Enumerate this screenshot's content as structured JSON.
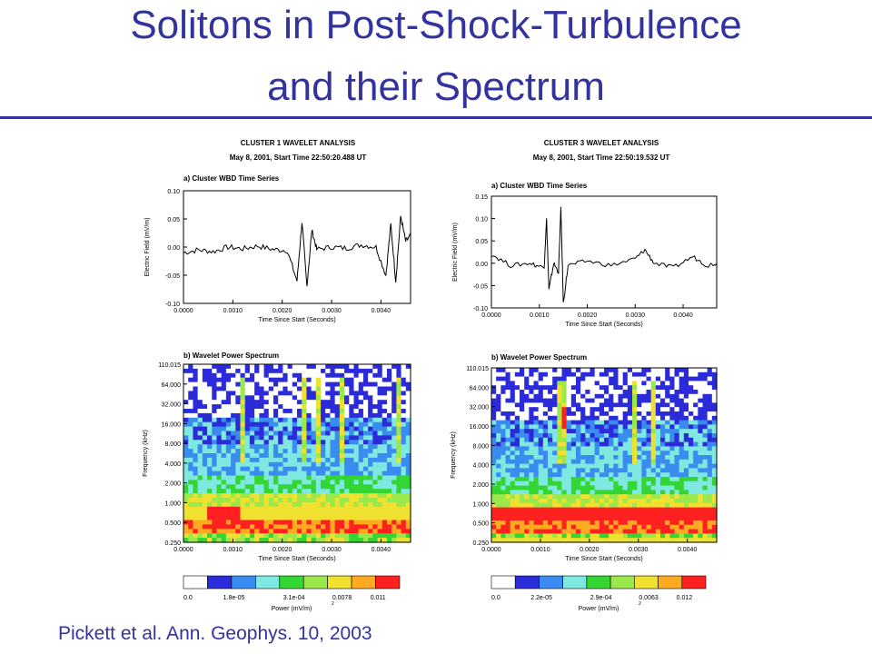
{
  "slide": {
    "title_line1": "Solitons in Post-Shock-Turbulence",
    "title_line2": "and their Spectrum",
    "citation": "Pickett et al. Ann. Geophys. 10, 2003"
  },
  "colors": {
    "title": "#3333a0",
    "spectrum_palette": [
      "#ffffff",
      "#2b2bd9",
      "#3a8cf0",
      "#7fe8e0",
      "#33d633",
      "#9be84a",
      "#f0e030",
      "#ffaa20",
      "#ff2020"
    ]
  },
  "chart_data": [
    {
      "type": "line",
      "panel": "cluster1-timeseries",
      "header_line1": "CLUSTER 1 WAVELET ANALYSIS",
      "header_line2": "May 8, 2001, Start Time 22:50:20.488 UT",
      "title": "a) Cluster WBD Time Series",
      "xlabel": "Time Since Start (Seconds)",
      "ylabel": "Electric Field (mV/m)",
      "xlim": [
        0,
        0.0046
      ],
      "ylim": [
        -0.1,
        0.1
      ],
      "xticks": [
        "0.0000",
        "0.0010",
        "0.0020",
        "0.0030",
        "0.0040"
      ],
      "yticks": [
        "0.10",
        "0.05",
        "0.00",
        "-0.05",
        "-0.10"
      ],
      "x": [
        0.0,
        0.0003,
        0.0006,
        0.0009,
        0.0012,
        0.0015,
        0.0018,
        0.0021,
        0.0023,
        0.0024,
        0.0025,
        0.0026,
        0.0027,
        0.003,
        0.0033,
        0.0036,
        0.0039,
        0.0041,
        0.0042,
        0.0043,
        0.0044,
        0.0045,
        0.0046
      ],
      "y": [
        -0.01,
        -0.005,
        -0.008,
        0.0,
        -0.003,
        0.002,
        -0.004,
        -0.006,
        -0.06,
        0.045,
        -0.07,
        0.03,
        -0.004,
        0.0,
        -0.002,
        0.004,
        0.0,
        -0.05,
        0.04,
        -0.06,
        0.055,
        0.01,
        0.02
      ]
    },
    {
      "type": "line",
      "panel": "cluster3-timeseries",
      "header_line1": "CLUSTER 3 WAVELET ANALYSIS",
      "header_line2": "May 8, 2001, Start Time 22:50:19.532 UT",
      "title": "a) Cluster WBD Time Series",
      "xlabel": "Time Since Start (Seconds)",
      "ylabel": "Electric Field (mV/m)",
      "xlim": [
        0,
        0.0047
      ],
      "ylim": [
        -0.1,
        0.15
      ],
      "xticks": [
        "0.0000",
        "0.0010",
        "0.0020",
        "0.0030",
        "0.0040"
      ],
      "yticks": [
        "0.15",
        "0.10",
        "0.05",
        "0.00",
        "-0.05",
        "-0.10"
      ],
      "x": [
        0.0,
        0.0004,
        0.0008,
        0.0011,
        0.00115,
        0.0012,
        0.0013,
        0.0014,
        0.00145,
        0.0015,
        0.0016,
        0.002,
        0.0025,
        0.003,
        0.0032,
        0.0034,
        0.0038,
        0.0042,
        0.0045,
        0.0047
      ],
      "y": [
        0.02,
        -0.005,
        0.0,
        -0.01,
        0.1,
        -0.06,
        0.0,
        -0.02,
        0.125,
        -0.09,
        -0.005,
        0.005,
        -0.005,
        0.01,
        0.03,
        0.0,
        -0.01,
        0.015,
        -0.005,
        0.0
      ]
    },
    {
      "type": "heatmap",
      "panel": "cluster1-spectrum",
      "title": "b) Wavelet Power Spectrum",
      "xlabel": "Time Since Start (Seconds)",
      "ylabel": "Frequency (kHz)",
      "xticks": [
        "0.0000",
        "0.0010",
        "0.0020",
        "0.0030",
        "0.0040"
      ],
      "yticks": [
        "110.015",
        "64.000",
        "32.000",
        "16.000",
        "8.000",
        "4.000",
        "2.000",
        "1.000",
        "0.500",
        "0.250"
      ],
      "colorbar": {
        "labels": [
          "0.0",
          "1.8e-05",
          "3.1e-04",
          "0.0078",
          "0.011"
        ],
        "xlabel": "Power (mV/m)",
        "exponent": "2"
      }
    },
    {
      "type": "heatmap",
      "panel": "cluster3-spectrum",
      "title": "b) Wavelet Power Spectrum",
      "xlabel": "Time Since Start (Seconds)",
      "ylabel": "Frequency (kHz)",
      "xticks": [
        "0.0000",
        "0.0010",
        "0.0020",
        "0.0030",
        "0.0040"
      ],
      "yticks": [
        "110.015",
        "64.000",
        "32.000",
        "16.000",
        "8.000",
        "4.000",
        "2.000",
        "1.000",
        "0.500",
        "0.250"
      ],
      "colorbar": {
        "labels": [
          "0.0",
          "2.2e-05",
          "2.9e-04",
          "0.0063",
          "0.012"
        ],
        "xlabel": "Power (mV/m)",
        "exponent": "2"
      }
    }
  ]
}
